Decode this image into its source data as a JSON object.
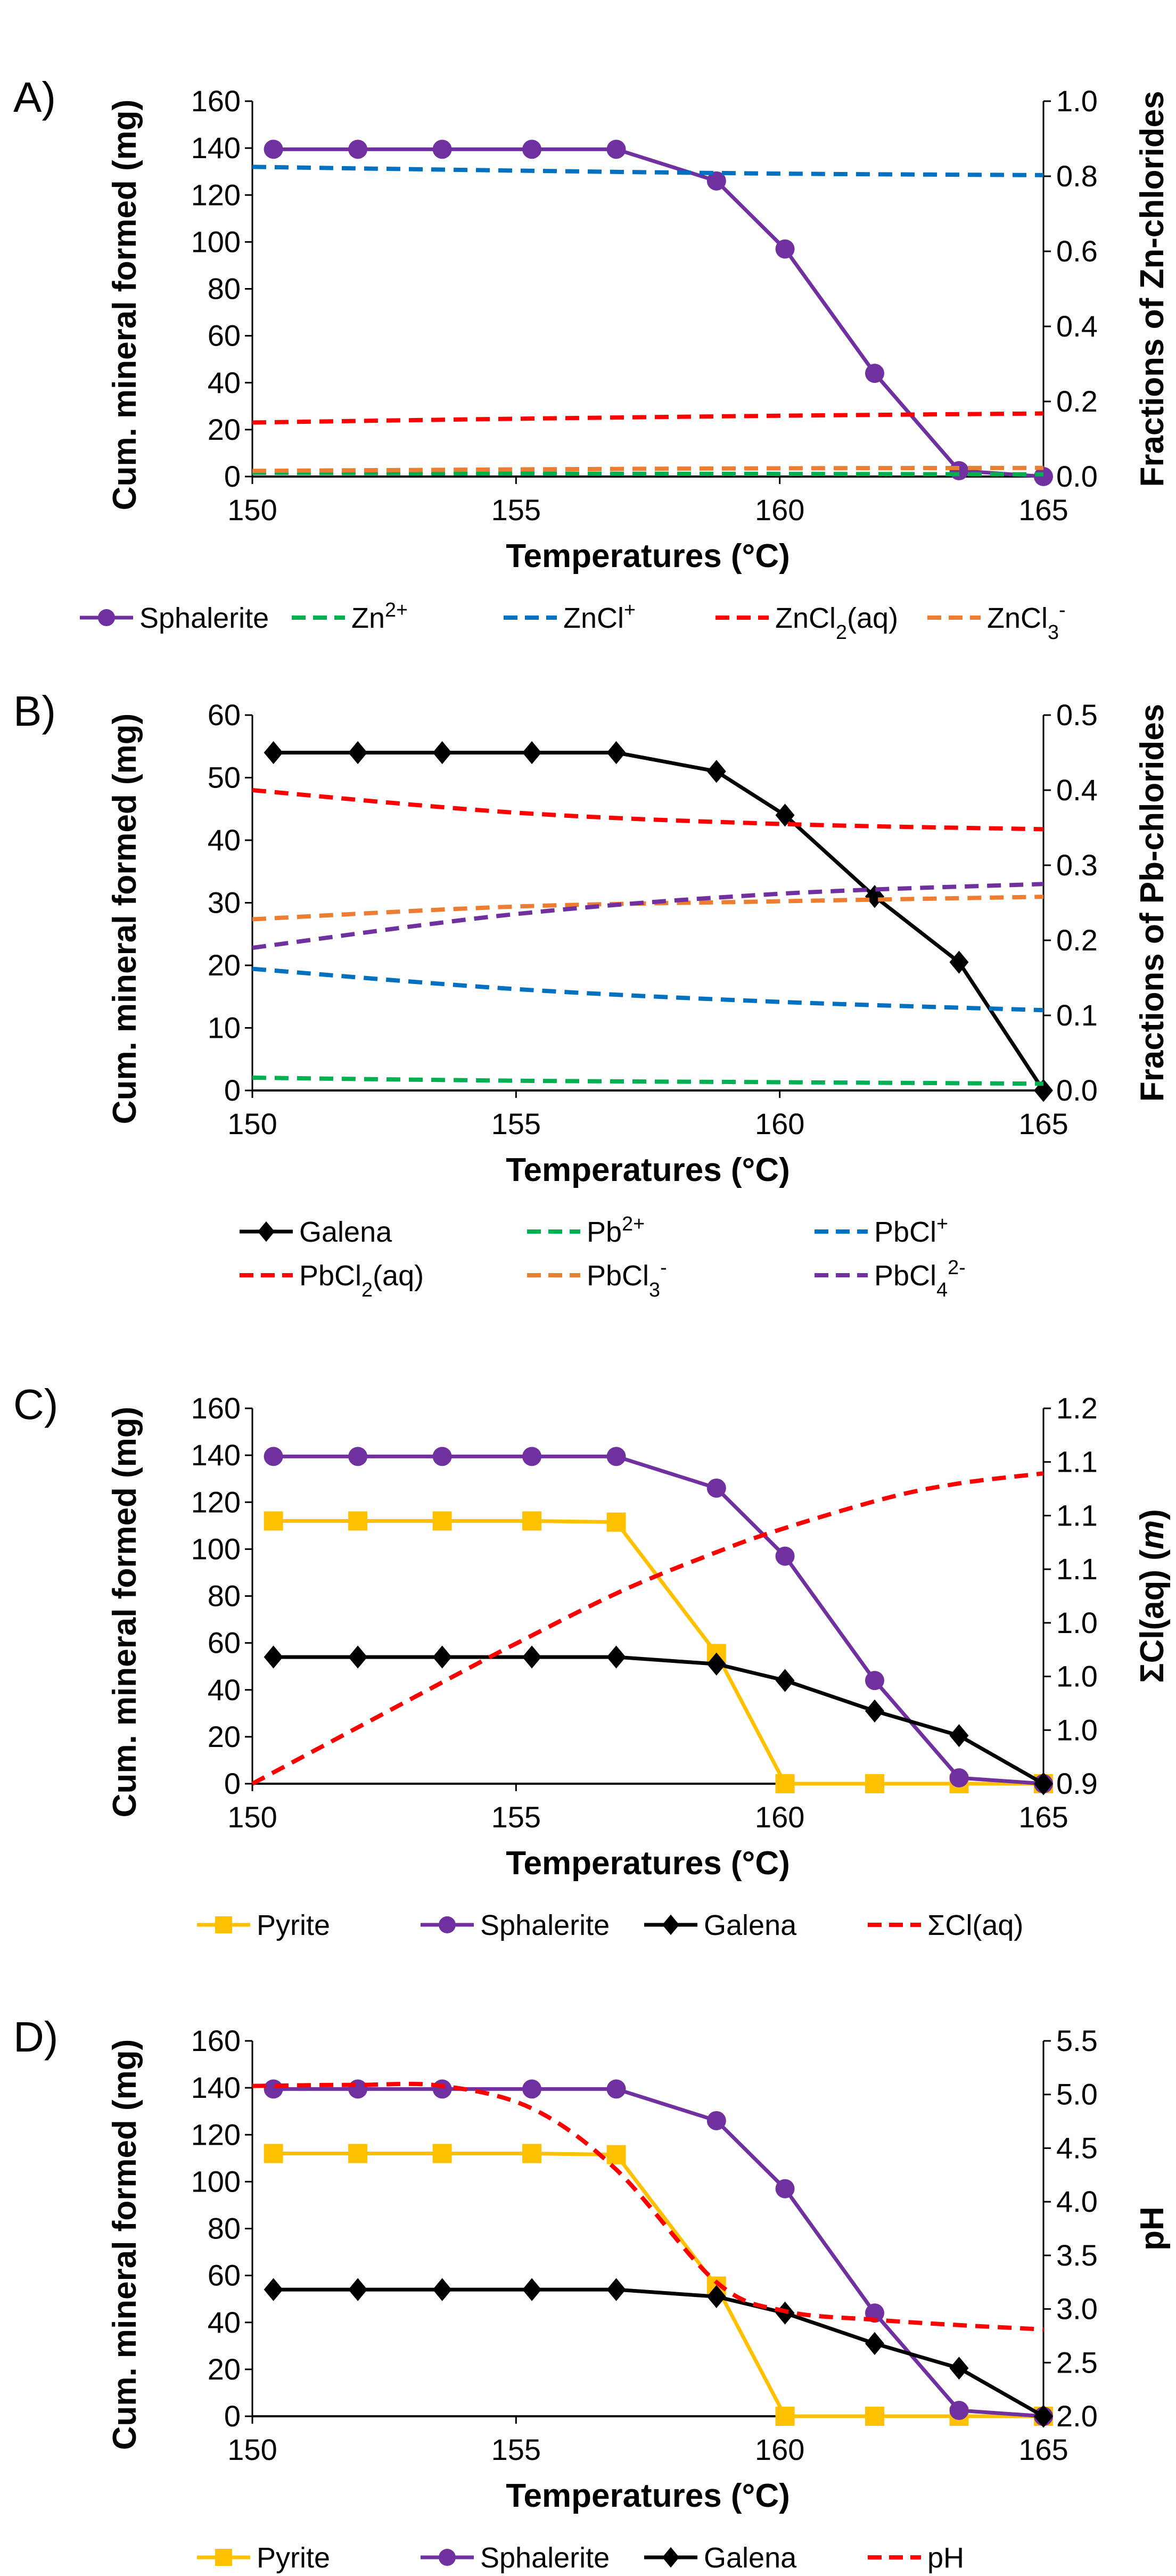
{
  "chart_data": [
    {
      "type": "line",
      "panel_label": "A)",
      "xlabel": "Temperatures (°C)",
      "ylabel": "Cum. mineral formed (mg)",
      "ylabel_right": [
        [
          "Fractions of Zn-chlorides",
          ""
        ]
      ],
      "xlim": [
        150,
        165
      ],
      "xticks": [
        150,
        155,
        160,
        165
      ],
      "ylim": [
        0,
        160
      ],
      "yticks": [
        0,
        20,
        40,
        60,
        80,
        100,
        120,
        140,
        160
      ],
      "ylim_right": [
        0,
        1.0
      ],
      "yticks_right": [
        "0.0",
        "0.2",
        "0.4",
        "0.6",
        "0.8",
        "1.0"
      ],
      "legend_columns": 5,
      "series": [
        {
          "name": "Sphalerite",
          "parts": [
            [
              "Sphalerite",
              ""
            ]
          ],
          "axis": "left",
          "style": "solid",
          "marker": "circle",
          "color": "#7030A0",
          "x": [
            150.4,
            152.0,
            153.6,
            155.3,
            156.9,
            158.8,
            160.1,
            161.8,
            163.4,
            165.0
          ],
          "y": [
            139.5,
            139.5,
            139.5,
            139.5,
            139.5,
            126,
            97,
            44,
            2.5,
            0
          ]
        },
        {
          "name": "Zn2+",
          "parts": [
            [
              "Zn",
              ""
            ],
            [
              "2+",
              "sup"
            ]
          ],
          "axis": "right",
          "style": "dash",
          "color": "#00B050",
          "x": [
            150,
            155,
            160,
            165
          ],
          "y": [
            0.01,
            0.008,
            0.007,
            0.006
          ]
        },
        {
          "name": "ZnCl+",
          "parts": [
            [
              "ZnCl",
              ""
            ],
            [
              "+",
              "sup"
            ]
          ],
          "axis": "right",
          "style": "dash",
          "color": "#0070C0",
          "x": [
            150,
            155,
            160,
            165
          ],
          "y": [
            0.825,
            0.815,
            0.807,
            0.803
          ]
        },
        {
          "name": "ZnCl2(aq)",
          "parts": [
            [
              "ZnCl",
              ""
            ],
            [
              "2",
              "sub"
            ],
            [
              "(aq)",
              ""
            ]
          ],
          "axis": "right",
          "style": "dash",
          "color": "#FF0000",
          "x": [
            150,
            155,
            160,
            165
          ],
          "y": [
            0.144,
            0.154,
            0.162,
            0.168
          ]
        },
        {
          "name": "ZnCl3-",
          "parts": [
            [
              "ZnCl",
              ""
            ],
            [
              "3",
              "sub"
            ],
            [
              "-",
              "sup"
            ]
          ],
          "axis": "right",
          "style": "dash",
          "color": "#ED7D31",
          "x": [
            150,
            155,
            160,
            165
          ],
          "y": [
            0.015,
            0.019,
            0.022,
            0.023
          ]
        }
      ]
    },
    {
      "type": "line",
      "panel_label": "B)",
      "xlabel": "Temperatures (°C)",
      "ylabel": "Cum. mineral formed (mg)",
      "ylabel_right": [
        [
          "Fractions of Pb-chlorides",
          ""
        ]
      ],
      "xlim": [
        150,
        165
      ],
      "xticks": [
        150,
        155,
        160,
        165
      ],
      "ylim": [
        0,
        60
      ],
      "yticks": [
        0,
        10,
        20,
        30,
        40,
        50,
        60
      ],
      "ylim_right": [
        0,
        0.5
      ],
      "yticks_right": [
        "0.0",
        "0.1",
        "0.2",
        "0.3",
        "0.4",
        "0.5"
      ],
      "legend_columns": 3,
      "series": [
        {
          "name": "Galena",
          "parts": [
            [
              "Galena",
              ""
            ]
          ],
          "axis": "left",
          "style": "solid",
          "marker": "diamond",
          "color": "#000000",
          "x": [
            150.4,
            152.0,
            153.6,
            155.3,
            156.9,
            158.8,
            160.1,
            161.8,
            163.4,
            165.0
          ],
          "y": [
            54,
            54,
            54,
            54,
            54,
            51,
            44,
            31,
            20.5,
            0
          ]
        },
        {
          "name": "Pb2+",
          "parts": [
            [
              "Pb",
              ""
            ],
            [
              "2+",
              "sup"
            ]
          ],
          "axis": "right",
          "style": "dash",
          "color": "#00B050",
          "x": [
            150,
            155,
            160,
            165
          ],
          "y": [
            0.017,
            0.013,
            0.011,
            0.009
          ]
        },
        {
          "name": "PbCl+",
          "parts": [
            [
              "PbCl",
              ""
            ],
            [
              "+",
              "sup"
            ]
          ],
          "axis": "right",
          "style": "dash",
          "color": "#0070C0",
          "x": [
            150,
            155,
            160,
            165
          ],
          "y": [
            0.162,
            0.135,
            0.118,
            0.107
          ]
        },
        {
          "name": "PbCl2(aq)",
          "parts": [
            [
              "PbCl",
              ""
            ],
            [
              "2",
              "sub"
            ],
            [
              "(aq)",
              ""
            ]
          ],
          "axis": "right",
          "style": "dash",
          "color": "#FF0000",
          "x": [
            150,
            155,
            160,
            165
          ],
          "y": [
            0.4,
            0.37,
            0.355,
            0.348
          ]
        },
        {
          "name": "PbCl3-",
          "parts": [
            [
              "PbCl",
              ""
            ],
            [
              "3",
              "sub"
            ],
            [
              "-",
              "sup"
            ]
          ],
          "axis": "right",
          "style": "dash",
          "color": "#ED7D31",
          "x": [
            150,
            155,
            160,
            165
          ],
          "y": [
            0.228,
            0.245,
            0.252,
            0.258
          ]
        },
        {
          "name": "PbCl4 2-",
          "parts": [
            [
              "PbCl",
              ""
            ],
            [
              "4",
              "sub"
            ],
            [
              "2-",
              "sup"
            ]
          ],
          "axis": "right",
          "style": "dash",
          "color": "#7030A0",
          "x": [
            150,
            155,
            160,
            165
          ],
          "y": [
            0.19,
            0.235,
            0.262,
            0.275
          ]
        }
      ]
    },
    {
      "type": "line",
      "panel_label": "C)",
      "xlabel": "Temperatures (°C)",
      "ylabel": "Cum. mineral formed (mg)",
      "ylabel_right": [
        [
          "ΣCl(aq) (",
          ""
        ],
        [
          "m",
          "ital"
        ],
        [
          ")",
          ""
        ]
      ],
      "xlim": [
        150,
        165
      ],
      "xticks": [
        150,
        155,
        160,
        165
      ],
      "ylim": [
        0,
        160
      ],
      "yticks": [
        0,
        20,
        40,
        60,
        80,
        100,
        120,
        140,
        160
      ],
      "ylim_right": [
        0.9,
        1.2
      ],
      "yticks_right": [
        "0.9",
        "1.0",
        "1.0",
        "1.0",
        "1.1",
        "1.1",
        "1.1",
        "1.2"
      ],
      "legend_columns": 4,
      "series": [
        {
          "name": "Pyrite",
          "parts": [
            [
              "Pyrite",
              ""
            ]
          ],
          "axis": "left",
          "style": "solid",
          "marker": "square",
          "color": "#FFC000",
          "x": [
            150.4,
            152.0,
            153.6,
            155.3,
            156.9,
            158.8,
            160.1,
            161.8,
            163.4,
            165.0
          ],
          "y": [
            112,
            112,
            112,
            112,
            111.5,
            55.5,
            0,
            0,
            0,
            0
          ]
        },
        {
          "name": "Sphalerite",
          "parts": [
            [
              "Sphalerite",
              ""
            ]
          ],
          "axis": "left",
          "style": "solid",
          "marker": "circle",
          "color": "#7030A0",
          "x": [
            150.4,
            152.0,
            153.6,
            155.3,
            156.9,
            158.8,
            160.1,
            161.8,
            163.4,
            165.0
          ],
          "y": [
            139.5,
            139.5,
            139.5,
            139.5,
            139.5,
            126,
            97,
            44,
            2.5,
            0
          ]
        },
        {
          "name": "Galena",
          "parts": [
            [
              "Galena",
              ""
            ]
          ],
          "axis": "left",
          "style": "solid",
          "marker": "diamond",
          "color": "#000000",
          "x": [
            150.4,
            152.0,
            153.6,
            155.3,
            156.9,
            158.8,
            160.1,
            161.8,
            163.4,
            165.0
          ],
          "y": [
            54,
            54,
            54,
            54,
            54,
            51,
            44,
            31,
            20.5,
            0
          ]
        },
        {
          "name": "ΣCl(aq)",
          "parts": [
            [
              "ΣCl(aq)",
              ""
            ]
          ],
          "axis": "right",
          "style": "dash",
          "color": "#FF0000",
          "x": [
            150,
            152,
            154,
            155,
            157,
            158.8,
            160,
            162,
            163.4,
            165
          ],
          "y": [
            0.9,
            0.945,
            0.99,
            1.012,
            1.054,
            1.085,
            1.103,
            1.128,
            1.14,
            1.148
          ]
        }
      ]
    },
    {
      "type": "line",
      "panel_label": "D)",
      "xlabel": "Temperatures (°C)",
      "ylabel": "Cum. mineral formed (mg)",
      "ylabel_right": [
        [
          "pH",
          ""
        ]
      ],
      "xlim": [
        150,
        165
      ],
      "xticks": [
        150,
        155,
        160,
        165
      ],
      "ylim": [
        0,
        160
      ],
      "yticks": [
        0,
        20,
        40,
        60,
        80,
        100,
        120,
        140,
        160
      ],
      "ylim_right": [
        2.0,
        5.5
      ],
      "yticks_right": [
        "2.0",
        "2.5",
        "3.0",
        "3.5",
        "4.0",
        "4.5",
        "5.0",
        "5.5"
      ],
      "legend_columns": 4,
      "series": [
        {
          "name": "Pyrite",
          "parts": [
            [
              "Pyrite",
              ""
            ]
          ],
          "axis": "left",
          "style": "solid",
          "marker": "square",
          "color": "#FFC000",
          "x": [
            150.4,
            152.0,
            153.6,
            155.3,
            156.9,
            158.8,
            160.1,
            161.8,
            163.4,
            165.0
          ],
          "y": [
            112,
            112,
            112,
            112,
            111.5,
            55.5,
            0,
            0,
            0,
            0
          ]
        },
        {
          "name": "Sphalerite",
          "parts": [
            [
              "Sphalerite",
              ""
            ]
          ],
          "axis": "left",
          "style": "solid",
          "marker": "circle",
          "color": "#7030A0",
          "x": [
            150.4,
            152.0,
            153.6,
            155.3,
            156.9,
            158.8,
            160.1,
            161.8,
            163.4,
            165.0
          ],
          "y": [
            139.5,
            139.5,
            139.5,
            139.5,
            139.5,
            126,
            97,
            44,
            2.5,
            0
          ]
        },
        {
          "name": "Galena",
          "parts": [
            [
              "Galena",
              ""
            ]
          ],
          "axis": "left",
          "style": "solid",
          "marker": "diamond",
          "color": "#000000",
          "x": [
            150.4,
            152.0,
            153.6,
            155.3,
            156.9,
            158.8,
            160.1,
            161.8,
            163.4,
            165.0
          ],
          "y": [
            54,
            54,
            54,
            54,
            54,
            51,
            44,
            31,
            20.5,
            0
          ]
        },
        {
          "name": "pH",
          "parts": [
            [
              "pH",
              ""
            ]
          ],
          "axis": "right",
          "style": "dash",
          "color": "#FF0000",
          "x": [
            150,
            152,
            153.6,
            155.3,
            156.9,
            158.8,
            160.1,
            161.8,
            163.4,
            165
          ],
          "y": [
            5.08,
            5.09,
            5.08,
            4.87,
            4.3,
            3.25,
            2.98,
            2.9,
            2.85,
            2.81
          ]
        }
      ]
    }
  ]
}
